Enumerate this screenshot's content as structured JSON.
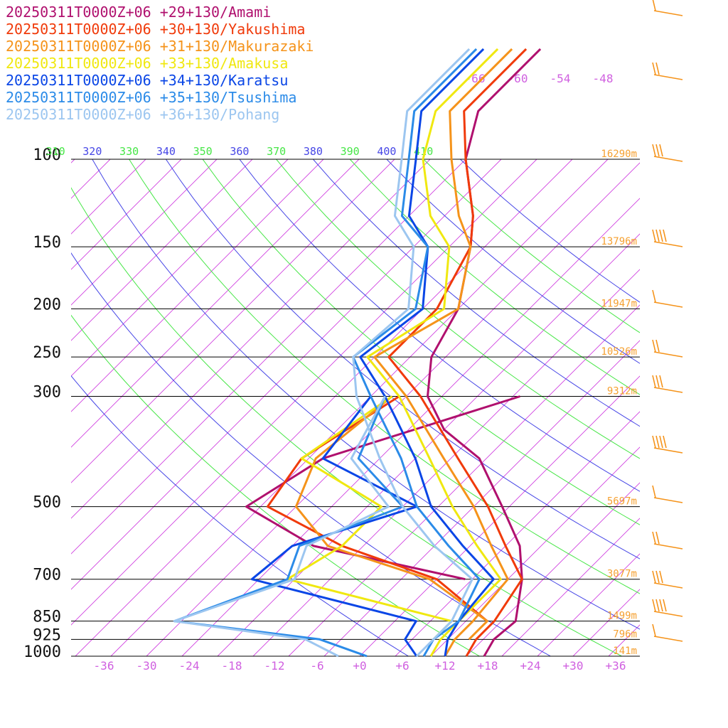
{
  "chart_data": {
    "type": "line",
    "title": "",
    "xlabel": "",
    "ylabel": "",
    "xlim": [
      -40,
      40
    ],
    "ylim": [
      1000,
      100
    ],
    "y_scale": "log",
    "skew": "temperature isotherms skewed 45 degrees",
    "grid": true,
    "legend_position": "top-left",
    "x_ticks": [
      "-36",
      "-30",
      "-24",
      "-18",
      "-12",
      "-6",
      "+0",
      "+6",
      "+12",
      "+18",
      "+24",
      "+30",
      "+36"
    ],
    "pressure_levels": [
      {
        "label": "100",
        "p": 100,
        "height": "16290m"
      },
      {
        "label": "150",
        "p": 150,
        "height": "13796m"
      },
      {
        "label": "200",
        "p": 200,
        "height": "11947m"
      },
      {
        "label": "250",
        "p": 250,
        "height": "10526m"
      },
      {
        "label": "300",
        "p": 300,
        "height": "9312m"
      },
      {
        "label": "500",
        "p": 500,
        "height": "5697m"
      },
      {
        "label": "700",
        "p": 700,
        "height": "3077m"
      },
      {
        "label": "850",
        "p": 850,
        "height": "1499m"
      },
      {
        "label": "925",
        "p": 925,
        "height": "796m"
      },
      {
        "label": "1000",
        "p": 1000,
        "height": "141m"
      }
    ],
    "theta_labels": [
      "310",
      "320",
      "330",
      "340",
      "350",
      "360",
      "370",
      "380",
      "390",
      "400",
      "410"
    ],
    "upper_isotherm_labels": [
      "-66",
      "-60",
      "-54",
      "-48"
    ],
    "series": [
      {
        "name": "20250311T0000Z+06 +29+130/Amami",
        "color": "#b0106e",
        "temperature": [
          [
            1000,
            17.5
          ],
          [
            925,
            16.5
          ],
          [
            850,
            17
          ],
          [
            700,
            12
          ],
          [
            600,
            7
          ],
          [
            500,
            -1
          ],
          [
            400,
            -11
          ],
          [
            350,
            -20
          ],
          [
            300,
            -27
          ],
          [
            250,
            -32
          ],
          [
            200,
            -35
          ],
          [
            150,
            -42
          ],
          [
            130,
            -46
          ],
          [
            100,
            -55
          ],
          [
            80,
            -60
          ],
          [
            60,
            -60
          ]
        ],
        "dewpoint": [
          [
            700,
            4
          ],
          [
            600,
            -22
          ],
          [
            500,
            -37
          ],
          [
            400,
            -33
          ],
          [
            300,
            -14
          ]
        ]
      },
      {
        "name": "20250311T0000Z+06 +30+130/Yakushima",
        "color": "#f03a0a",
        "temperature": [
          [
            1000,
            15
          ],
          [
            925,
            14
          ],
          [
            850,
            14
          ],
          [
            700,
            12
          ],
          [
            600,
            5
          ],
          [
            500,
            -3
          ],
          [
            400,
            -14
          ],
          [
            300,
            -28
          ],
          [
            250,
            -38
          ],
          [
            200,
            -38
          ],
          [
            150,
            -42
          ],
          [
            130,
            -46
          ],
          [
            100,
            -55
          ],
          [
            80,
            -62
          ],
          [
            60,
            -62
          ]
        ],
        "dewpoint": [
          [
            850,
            13
          ],
          [
            700,
            0
          ],
          [
            600,
            -18
          ],
          [
            500,
            -34
          ],
          [
            400,
            -36
          ],
          [
            300,
            -31
          ]
        ]
      },
      {
        "name": "20250311T0000Z+06 +31+130/Makurazaki",
        "color": "#f5931a",
        "temperature": [
          [
            1000,
            12
          ],
          [
            925,
            11
          ],
          [
            850,
            11
          ],
          [
            700,
            10
          ],
          [
            600,
            3
          ],
          [
            500,
            -5
          ],
          [
            400,
            -16
          ],
          [
            300,
            -30
          ],
          [
            250,
            -40
          ],
          [
            200,
            -35
          ],
          [
            150,
            -42
          ],
          [
            130,
            -48
          ],
          [
            100,
            -57
          ],
          [
            80,
            -64
          ],
          [
            60,
            -64
          ]
        ],
        "dewpoint": [
          [
            925,
            13
          ],
          [
            850,
            13
          ],
          [
            700,
            -1
          ],
          [
            600,
            -20
          ],
          [
            500,
            -30
          ],
          [
            400,
            -34
          ],
          [
            300,
            -32
          ]
        ]
      },
      {
        "name": "20250311T0000Z+06 +33+130/Amakusa",
        "color": "#f0e810",
        "temperature": [
          [
            1000,
            10
          ],
          [
            925,
            9
          ],
          [
            850,
            9
          ],
          [
            700,
            9
          ],
          [
            600,
            1
          ],
          [
            500,
            -8
          ],
          [
            400,
            -18
          ],
          [
            300,
            -31
          ],
          [
            250,
            -41
          ],
          [
            200,
            -37
          ],
          [
            150,
            -45
          ],
          [
            130,
            -52
          ],
          [
            100,
            -61
          ],
          [
            80,
            -66
          ],
          [
            60,
            -66
          ]
        ],
        "dewpoint": [
          [
            925,
            8
          ],
          [
            850,
            8
          ],
          [
            700,
            -21
          ],
          [
            600,
            -18
          ],
          [
            500,
            -18
          ],
          [
            400,
            -36
          ],
          [
            300,
            -32
          ]
        ]
      },
      {
        "name": "20250311T0000Z+06 +34+130/Karatsu",
        "color": "#0a46e6",
        "temperature": [
          [
            1000,
            12
          ],
          [
            925,
            10
          ],
          [
            850,
            9
          ],
          [
            700,
            8
          ],
          [
            600,
            -1
          ],
          [
            500,
            -11
          ],
          [
            400,
            -20
          ],
          [
            300,
            -33
          ],
          [
            250,
            -42
          ],
          [
            200,
            -40
          ],
          [
            150,
            -48
          ],
          [
            130,
            -55
          ],
          [
            100,
            -62
          ],
          [
            80,
            -68
          ],
          [
            60,
            -68
          ]
        ],
        "dewpoint": [
          [
            1000,
            8
          ],
          [
            925,
            4
          ],
          [
            850,
            3
          ],
          [
            700,
            -26
          ],
          [
            600,
            -25
          ],
          [
            500,
            -13
          ],
          [
            400,
            -33
          ],
          [
            300,
            -35
          ]
        ]
      },
      {
        "name": "20250311T0000Z+06 +35+130/Tsushima",
        "color": "#2b8be8",
        "temperature": [
          [
            1000,
            9
          ],
          [
            925,
            8
          ],
          [
            850,
            9
          ],
          [
            700,
            6
          ],
          [
            600,
            -3
          ],
          [
            500,
            -13
          ],
          [
            400,
            -22
          ],
          [
            300,
            -35
          ],
          [
            250,
            -43
          ],
          [
            200,
            -41
          ],
          [
            150,
            -48
          ],
          [
            130,
            -56
          ],
          [
            100,
            -63
          ],
          [
            80,
            -69
          ],
          [
            60,
            -69
          ]
        ],
        "dewpoint": [
          [
            1000,
            1
          ],
          [
            925,
            -8
          ],
          [
            850,
            -31
          ],
          [
            700,
            -21
          ],
          [
            600,
            -24
          ],
          [
            500,
            -15
          ],
          [
            400,
            -28
          ],
          [
            300,
            -33
          ]
        ]
      },
      {
        "name": "20250311T0000Z+06 +36+130/Pohang",
        "color": "#9cc6f0",
        "temperature": [
          [
            1000,
            8
          ],
          [
            925,
            8
          ],
          [
            850,
            8
          ],
          [
            700,
            5
          ],
          [
            600,
            -5
          ],
          [
            500,
            -15
          ],
          [
            400,
            -25
          ],
          [
            300,
            -37
          ],
          [
            250,
            -43
          ],
          [
            200,
            -42
          ],
          [
            150,
            -50
          ],
          [
            130,
            -57
          ],
          [
            100,
            -64
          ],
          [
            80,
            -70
          ],
          [
            60,
            -70
          ]
        ],
        "dewpoint": [
          [
            1000,
            -3
          ],
          [
            925,
            -10
          ],
          [
            850,
            -31
          ],
          [
            700,
            -20
          ],
          [
            600,
            -23
          ],
          [
            500,
            -17
          ],
          [
            400,
            -29
          ],
          [
            300,
            -33
          ]
        ]
      }
    ]
  }
}
